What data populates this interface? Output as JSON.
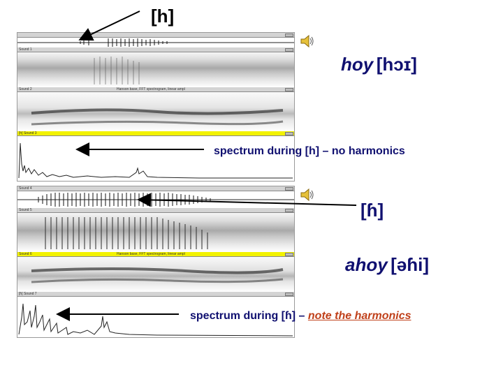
{
  "slide": {
    "top_label": "[h]",
    "example1": {
      "word": "hoy",
      "transcription": "[hɔɪ]"
    },
    "note1": "spectrum during [h] – no harmonics",
    "middle_label": "[ɦ]",
    "example2": {
      "word": "ahoy",
      "transcription": "[əɦi]"
    },
    "note2_prefix": "spectrum during [ɦ] – ",
    "note2_link": "note the harmonics"
  },
  "window1": {
    "wave_bar": "",
    "spectrogram_bar": "Sound 1",
    "filter_bar": "Sound 2",
    "filter_bar_text": "Hanson base, FFT spectrogram, linear ampl",
    "spectrum_bar": "[h] Sound 3"
  },
  "window2": {
    "wave_bar": "Sound 4",
    "spectrogram_bar": "Sound 5",
    "filter_bar": "Sound 6",
    "filter_bar_text": "Hanson base, FFT spectrogram, linear ampl",
    "spectrum_bar": "[ɦ] Sound 7"
  },
  "colors": {
    "accent_text": "#101070",
    "link": "#c0401a",
    "highlight_bar": "#f2f200",
    "arrow": "#000000"
  },
  "icons": [
    "speaker-icon",
    "arrow-pointer"
  ]
}
